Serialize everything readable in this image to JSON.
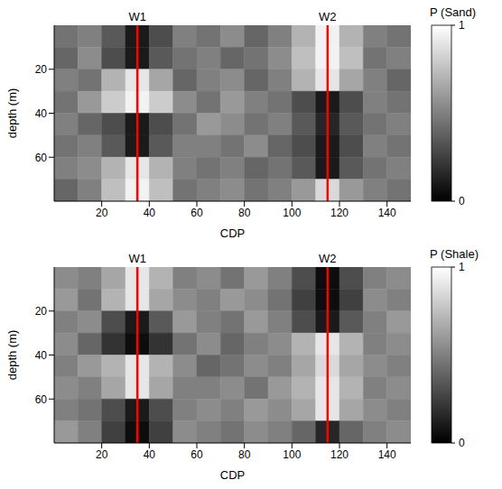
{
  "chart_data": [
    {
      "type": "heatmap",
      "colorbar_label": "P (Sand)",
      "xlabel": "CDP",
      "ylabel": "depth (m)",
      "color": "gray",
      "xlim": [
        0,
        150
      ],
      "xticks": [
        20,
        40,
        60,
        80,
        100,
        120,
        140
      ],
      "ylim": [
        0,
        80
      ],
      "yticks": [
        20,
        40,
        60
      ],
      "x_bins": [
        0,
        10,
        20,
        30,
        40,
        50,
        60,
        70,
        80,
        90,
        100,
        110,
        120,
        130,
        140,
        150
      ],
      "y_bins": [
        0,
        10,
        20,
        30,
        40,
        50,
        60,
        70,
        80
      ],
      "cells": [
        [
          0.45,
          0.5,
          0.35,
          0.1,
          0.3,
          0.5,
          0.45,
          0.55,
          0.4,
          0.5,
          0.7,
          0.95,
          0.7,
          0.5,
          0.45
        ],
        [
          0.4,
          0.55,
          0.3,
          0.1,
          0.35,
          0.45,
          0.5,
          0.4,
          0.45,
          0.55,
          0.75,
          0.95,
          0.75,
          0.45,
          0.5
        ],
        [
          0.5,
          0.45,
          0.7,
          0.9,
          0.65,
          0.4,
          0.5,
          0.55,
          0.4,
          0.5,
          0.7,
          0.9,
          0.65,
          0.5,
          0.4
        ],
        [
          0.45,
          0.6,
          0.8,
          0.95,
          0.8,
          0.55,
          0.45,
          0.6,
          0.5,
          0.45,
          0.3,
          0.1,
          0.3,
          0.5,
          0.45
        ],
        [
          0.5,
          0.4,
          0.3,
          0.1,
          0.3,
          0.45,
          0.6,
          0.55,
          0.45,
          0.5,
          0.35,
          0.15,
          0.35,
          0.45,
          0.5
        ],
        [
          0.45,
          0.5,
          0.35,
          0.1,
          0.35,
          0.5,
          0.5,
          0.45,
          0.55,
          0.4,
          0.3,
          0.1,
          0.3,
          0.5,
          0.45
        ],
        [
          0.5,
          0.55,
          0.7,
          0.9,
          0.7,
          0.5,
          0.45,
          0.5,
          0.4,
          0.45,
          0.35,
          0.1,
          0.35,
          0.45,
          0.5
        ],
        [
          0.4,
          0.5,
          0.75,
          0.95,
          0.75,
          0.45,
          0.5,
          0.55,
          0.45,
          0.5,
          0.6,
          0.85,
          0.6,
          0.5,
          0.45
        ]
      ],
      "colorbar_range": [
        0,
        1
      ],
      "colorbar_ticks": [
        0,
        1
      ],
      "wells": [
        {
          "name": "W1",
          "x": 35,
          "color": "#ff0000"
        },
        {
          "name": "W2",
          "x": 115,
          "color": "#ff0000"
        }
      ]
    },
    {
      "type": "heatmap",
      "colorbar_label": "P (Shale)",
      "xlabel": "CDP",
      "ylabel": "depth (m)",
      "color": "gray",
      "xlim": [
        0,
        150
      ],
      "xticks": [
        20,
        40,
        60,
        80,
        100,
        120,
        140
      ],
      "ylim": [
        0,
        80
      ],
      "yticks": [
        20,
        40,
        60
      ],
      "x_bins": [
        0,
        10,
        20,
        30,
        40,
        50,
        60,
        70,
        80,
        90,
        100,
        110,
        120,
        130,
        140,
        150
      ],
      "y_bins": [
        0,
        10,
        20,
        30,
        40,
        50,
        60,
        70,
        80
      ],
      "cells": [
        [
          0.55,
          0.5,
          0.65,
          0.9,
          0.7,
          0.5,
          0.55,
          0.45,
          0.6,
          0.5,
          0.3,
          0.05,
          0.3,
          0.5,
          0.55
        ],
        [
          0.6,
          0.45,
          0.7,
          0.9,
          0.65,
          0.55,
          0.5,
          0.6,
          0.55,
          0.45,
          0.25,
          0.05,
          0.25,
          0.55,
          0.5
        ],
        [
          0.5,
          0.55,
          0.3,
          0.1,
          0.35,
          0.6,
          0.5,
          0.45,
          0.6,
          0.5,
          0.3,
          0.1,
          0.35,
          0.5,
          0.6
        ],
        [
          0.55,
          0.4,
          0.2,
          0.05,
          0.2,
          0.45,
          0.55,
          0.4,
          0.5,
          0.55,
          0.7,
          0.9,
          0.7,
          0.5,
          0.55
        ],
        [
          0.5,
          0.6,
          0.7,
          0.9,
          0.7,
          0.55,
          0.4,
          0.45,
          0.55,
          0.5,
          0.65,
          0.85,
          0.65,
          0.55,
          0.5
        ],
        [
          0.55,
          0.5,
          0.65,
          0.9,
          0.65,
          0.5,
          0.5,
          0.55,
          0.45,
          0.6,
          0.7,
          0.9,
          0.7,
          0.5,
          0.55
        ],
        [
          0.5,
          0.45,
          0.3,
          0.1,
          0.3,
          0.5,
          0.55,
          0.5,
          0.6,
          0.55,
          0.65,
          0.9,
          0.65,
          0.55,
          0.5
        ],
        [
          0.6,
          0.5,
          0.25,
          0.05,
          0.25,
          0.55,
          0.5,
          0.45,
          0.55,
          0.5,
          0.4,
          0.15,
          0.4,
          0.5,
          0.55
        ]
      ],
      "colorbar_range": [
        0,
        1
      ],
      "colorbar_ticks": [
        0,
        1
      ],
      "wells": [
        {
          "name": "W1",
          "x": 35,
          "color": "#ff0000"
        },
        {
          "name": "W2",
          "x": 115,
          "color": "#ff0000"
        }
      ]
    }
  ]
}
